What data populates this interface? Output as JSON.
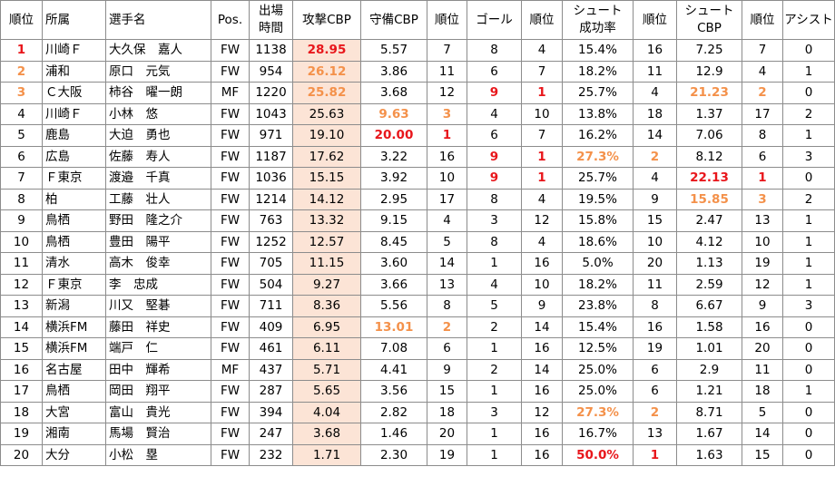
{
  "headers": [
    "順位",
    "所属",
    "選手名",
    "Pos.",
    "出場\n時間",
    "攻撃CBP",
    "守備CBP",
    "順位",
    "ゴール",
    "順位",
    "シュート\n成功率",
    "順位",
    "シュート\nCBP",
    "順位",
    "アシスト"
  ],
  "colors": {
    "red": "#e8161b",
    "orange": "#f4914a",
    "attack_bg": "#fce4d6",
    "border": "#8c8c8c"
  },
  "rows": [
    [
      "1",
      "川崎Ｆ",
      "大久保　嘉人",
      "FW",
      "1138",
      "28.95",
      "5.57",
      "7",
      "8",
      "4",
      "15.4%",
      "16",
      "7.25",
      "7",
      "0"
    ],
    [
      "2",
      "浦和",
      "原口　元気",
      "FW",
      "954",
      "26.12",
      "3.86",
      "11",
      "6",
      "7",
      "18.2%",
      "11",
      "12.9",
      "4",
      "1"
    ],
    [
      "3",
      "Ｃ大阪",
      "柿谷　曜一朗",
      "MF",
      "1220",
      "25.82",
      "3.68",
      "12",
      "9",
      "1",
      "25.7%",
      "4",
      "21.23",
      "2",
      "0"
    ],
    [
      "4",
      "川崎Ｆ",
      "小林　悠",
      "FW",
      "1043",
      "25.63",
      "9.63",
      "3",
      "4",
      "10",
      "13.8%",
      "18",
      "1.37",
      "17",
      "2"
    ],
    [
      "5",
      "鹿島",
      "大迫　勇也",
      "FW",
      "971",
      "19.10",
      "20.00",
      "1",
      "6",
      "7",
      "16.2%",
      "14",
      "7.06",
      "8",
      "1"
    ],
    [
      "6",
      "広島",
      "佐藤　寿人",
      "FW",
      "1187",
      "17.62",
      "3.22",
      "16",
      "9",
      "1",
      "27.3%",
      "2",
      "8.12",
      "6",
      "3"
    ],
    [
      "7",
      "Ｆ東京",
      "渡邉　千真",
      "FW",
      "1036",
      "15.15",
      "3.92",
      "10",
      "9",
      "1",
      "25.7%",
      "4",
      "22.13",
      "1",
      "0"
    ],
    [
      "8",
      "柏",
      "工藤　壮人",
      "FW",
      "1214",
      "14.12",
      "2.95",
      "17",
      "8",
      "4",
      "19.5%",
      "9",
      "15.85",
      "3",
      "2"
    ],
    [
      "9",
      "鳥栖",
      "野田　隆之介",
      "FW",
      "763",
      "13.32",
      "9.15",
      "4",
      "3",
      "12",
      "15.8%",
      "15",
      "2.47",
      "13",
      "1"
    ],
    [
      "10",
      "鳥栖",
      "豊田　陽平",
      "FW",
      "1252",
      "12.57",
      "8.45",
      "5",
      "8",
      "4",
      "18.6%",
      "10",
      "4.12",
      "10",
      "1"
    ],
    [
      "11",
      "清水",
      "高木　俊幸",
      "FW",
      "705",
      "11.15",
      "3.60",
      "14",
      "1",
      "16",
      "5.0%",
      "20",
      "1.13",
      "19",
      "1"
    ],
    [
      "12",
      "Ｆ東京",
      "李　忠成",
      "FW",
      "504",
      "9.27",
      "3.66",
      "13",
      "4",
      "10",
      "18.2%",
      "11",
      "2.59",
      "12",
      "1"
    ],
    [
      "13",
      "新潟",
      "川又　堅碁",
      "FW",
      "711",
      "8.36",
      "5.56",
      "8",
      "5",
      "9",
      "23.8%",
      "8",
      "6.67",
      "9",
      "3"
    ],
    [
      "14",
      "横浜FM",
      "藤田　祥史",
      "FW",
      "409",
      "6.95",
      "13.01",
      "2",
      "2",
      "14",
      "15.4%",
      "16",
      "1.58",
      "16",
      "0"
    ],
    [
      "15",
      "横浜FM",
      "端戸　仁",
      "FW",
      "461",
      "6.11",
      "7.08",
      "6",
      "1",
      "16",
      "12.5%",
      "19",
      "1.01",
      "20",
      "0"
    ],
    [
      "16",
      "名古屋",
      "田中　輝希",
      "MF",
      "437",
      "5.71",
      "4.41",
      "9",
      "2",
      "14",
      "25.0%",
      "6",
      "2.9",
      "11",
      "0"
    ],
    [
      "17",
      "鳥栖",
      "岡田　翔平",
      "FW",
      "287",
      "5.65",
      "3.56",
      "15",
      "1",
      "16",
      "25.0%",
      "6",
      "1.21",
      "18",
      "1"
    ],
    [
      "18",
      "大宮",
      "富山　貴光",
      "FW",
      "394",
      "4.04",
      "2.82",
      "18",
      "3",
      "12",
      "27.3%",
      "2",
      "8.71",
      "5",
      "0"
    ],
    [
      "19",
      "湘南",
      "馬場　賢治",
      "FW",
      "247",
      "3.68",
      "1.46",
      "20",
      "1",
      "16",
      "16.7%",
      "13",
      "1.67",
      "14",
      "0"
    ],
    [
      "20",
      "大分",
      "小松　塁",
      "FW",
      "232",
      "1.71",
      "2.30",
      "19",
      "1",
      "16",
      "50.0%",
      "1",
      "1.63",
      "15",
      "0"
    ]
  ],
  "highlights": {
    "0": {
      "0": "red",
      "5": "red"
    },
    "1": {
      "0": "orange",
      "5": "orange"
    },
    "2": {
      "0": "orange",
      "5": "orange",
      "8": "red",
      "9": "red",
      "12": "orange",
      "13": "orange"
    },
    "3": {
      "6": "orange",
      "7": "orange"
    },
    "4": {
      "6": "red",
      "7": "red"
    },
    "5": {
      "8": "red",
      "9": "red",
      "10": "orange",
      "11": "orange"
    },
    "6": {
      "8": "red",
      "9": "red",
      "12": "red",
      "13": "red"
    },
    "7": {
      "12": "orange",
      "13": "orange"
    },
    "13": {
      "6": "orange",
      "7": "orange"
    },
    "17": {
      "10": "orange",
      "11": "orange"
    },
    "19": {
      "10": "red",
      "11": "red"
    }
  }
}
